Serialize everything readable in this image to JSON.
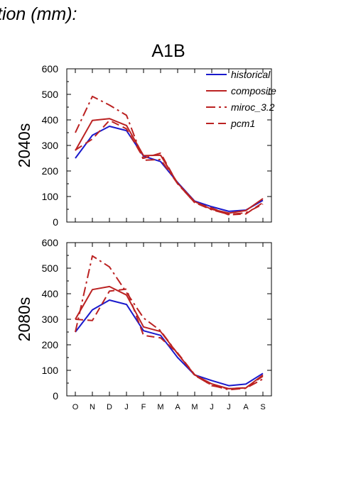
{
  "header_text": "tion (mm):",
  "scenario": "A1B",
  "colors": {
    "historical": "#1a1acc",
    "future": "#bb2222",
    "axis": "#000000"
  },
  "chart_data": [
    {
      "type": "line",
      "period_label": "2040s",
      "ylim": [
        0,
        600
      ],
      "yticks": [
        0,
        100,
        200,
        300,
        400,
        500,
        600
      ],
      "x": [
        "O",
        "N",
        "D",
        "J",
        "F",
        "M",
        "A",
        "M",
        "J",
        "J",
        "A",
        "S"
      ],
      "show_xticklabels": false,
      "legend": {
        "position": "top-right"
      },
      "series": [
        {
          "name": "historical",
          "style": "solid",
          "color": "#1a1acc",
          "values": [
            250,
            340,
            375,
            358,
            258,
            237,
            155,
            82,
            60,
            42,
            47,
            85
          ]
        },
        {
          "name": "composite",
          "style": "solid",
          "color": "#bb2222",
          "values": [
            280,
            398,
            405,
            378,
            260,
            262,
            152,
            80,
            50,
            35,
            45,
            92
          ]
        },
        {
          "name": "miroc_3.2",
          "style": "dashdot",
          "color": "#bb2222",
          "values": [
            350,
            492,
            458,
            418,
            242,
            245,
            150,
            76,
            48,
            30,
            36,
            70
          ]
        },
        {
          "name": "pcm1",
          "style": "dash",
          "color": "#bb2222",
          "values": [
            282,
            325,
            398,
            365,
            250,
            270,
            150,
            76,
            55,
            28,
            32,
            76
          ]
        }
      ]
    },
    {
      "type": "line",
      "period_label": "2080s",
      "ylim": [
        0,
        600
      ],
      "yticks": [
        0,
        100,
        200,
        300,
        400,
        500,
        600
      ],
      "x": [
        "O",
        "N",
        "D",
        "J",
        "F",
        "M",
        "A",
        "M",
        "J",
        "J",
        "A",
        "S"
      ],
      "show_xticklabels": true,
      "series": [
        {
          "name": "historical",
          "style": "solid",
          "color": "#1a1acc",
          "values": [
            250,
            337,
            375,
            358,
            255,
            237,
            150,
            82,
            60,
            40,
            46,
            88
          ]
        },
        {
          "name": "composite",
          "style": "solid",
          "color": "#bb2222",
          "values": [
            300,
            416,
            428,
            395,
            270,
            252,
            165,
            82,
            47,
            28,
            31,
            82
          ]
        },
        {
          "name": "miroc_3.2",
          "style": "dashdot",
          "color": "#bb2222",
          "values": [
            250,
            548,
            505,
            405,
            305,
            255,
            165,
            80,
            42,
            24,
            30,
            66
          ]
        },
        {
          "name": "pcm1",
          "style": "dash",
          "color": "#bb2222",
          "values": [
            300,
            295,
            410,
            418,
            237,
            227,
            168,
            83,
            40,
            28,
            32,
            77
          ]
        }
      ]
    }
  ]
}
